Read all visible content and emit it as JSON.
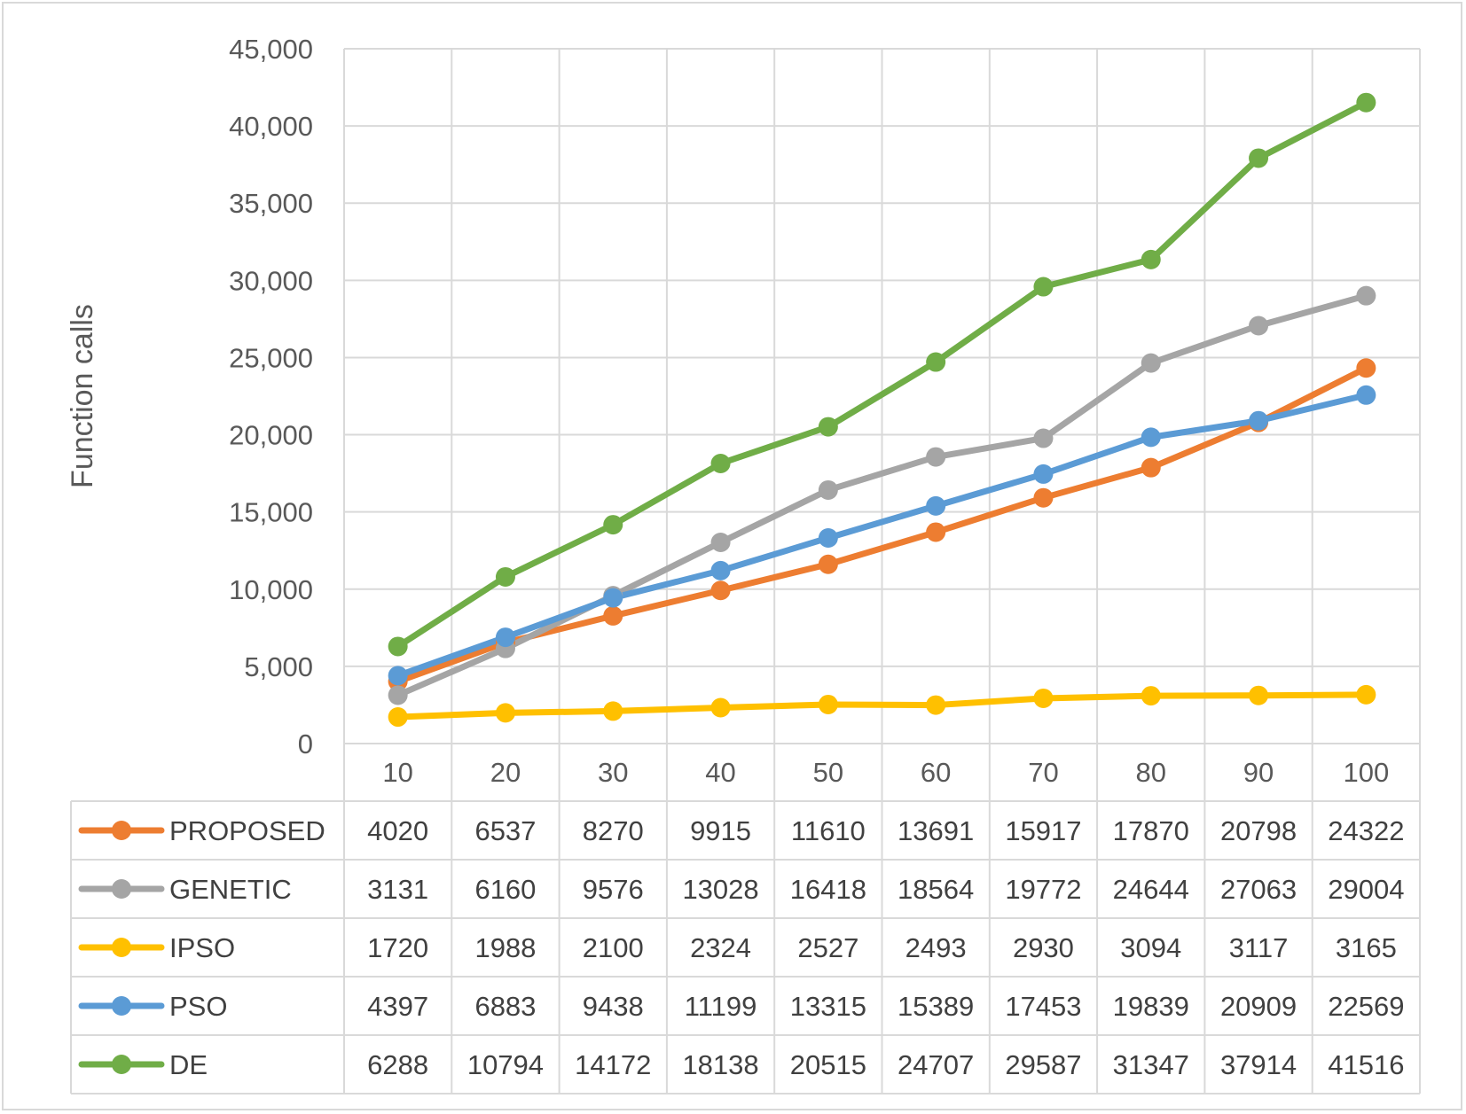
{
  "chart_data": {
    "type": "line",
    "title": "",
    "xlabel": "",
    "ylabel": "Function calls",
    "x": [
      "10",
      "20",
      "30",
      "40",
      "50",
      "60",
      "70",
      "80",
      "90",
      "100"
    ],
    "ylim": [
      0,
      45000
    ],
    "yticks": [
      "0",
      "5,000",
      "10,000",
      "15,000",
      "20,000",
      "25,000",
      "30,000",
      "35,000",
      "40,000",
      "45,000"
    ],
    "grid": true,
    "legend": "data-table-below",
    "series": [
      {
        "name": "PROPOSED",
        "color": "#ed7d31",
        "values": [
          4020,
          6537,
          8270,
          9915,
          11610,
          13691,
          15917,
          17870,
          20798,
          24322
        ]
      },
      {
        "name": "GENETIC",
        "color": "#a5a5a5",
        "values": [
          3131,
          6160,
          9576,
          13028,
          16418,
          18564,
          19772,
          24644,
          27063,
          29004
        ]
      },
      {
        "name": "IPSO",
        "color": "#ffc000",
        "values": [
          1720,
          1988,
          2100,
          2324,
          2527,
          2493,
          2930,
          3094,
          3117,
          3165
        ]
      },
      {
        "name": "PSO",
        "color": "#5b9bd5",
        "values": [
          4397,
          6883,
          9438,
          11199,
          13315,
          15389,
          17453,
          19839,
          20909,
          22569
        ]
      },
      {
        "name": "DE",
        "color": "#70ad47",
        "values": [
          6288,
          10794,
          14172,
          18138,
          20515,
          24707,
          29587,
          31347,
          37914,
          41516
        ]
      }
    ]
  }
}
